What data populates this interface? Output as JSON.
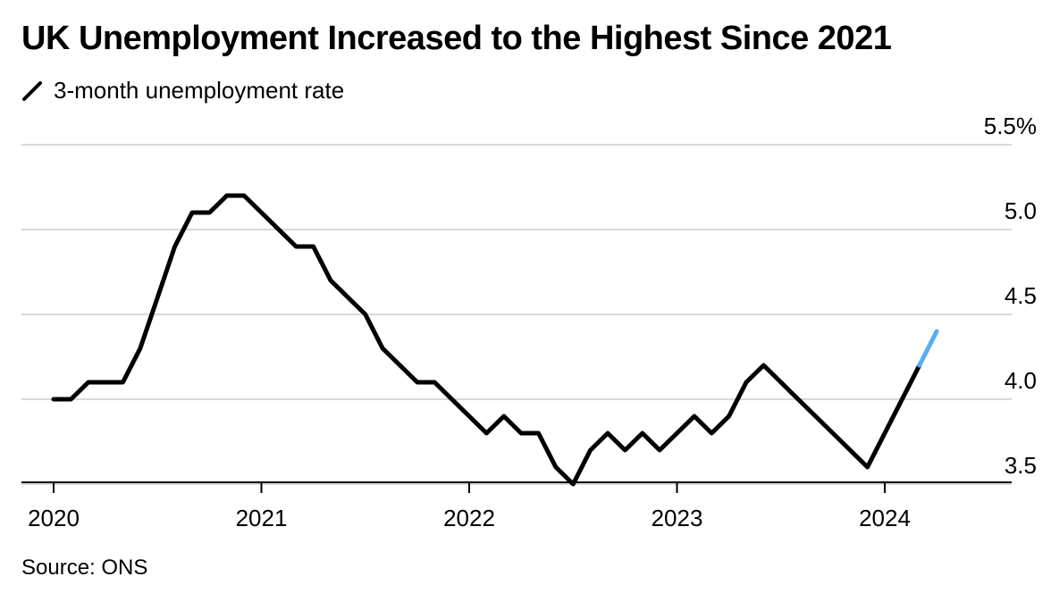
{
  "header": {
    "title": "UK Unemployment Increased to the Highest Since 2021",
    "legend_label": "3-month unemployment rate"
  },
  "footer": {
    "source": "Source: ONS"
  },
  "chart_data": {
    "type": "line",
    "title": "UK Unemployment Increased to the Highest Since 2021",
    "xlabel": "",
    "ylabel": "",
    "ylim": [
      3.4,
      5.5
    ],
    "y_ticks": [
      3.5,
      4.0,
      4.5,
      5.0,
      5.5
    ],
    "y_tick_labels": [
      "3.5",
      "4.0",
      "4.5",
      "5.0",
      "5.5%"
    ],
    "x_tick_labels": [
      "2020",
      "2021",
      "2022",
      "2023",
      "2024"
    ],
    "grid": true,
    "y_axis_position": "right",
    "colors": {
      "line": "#000000",
      "highlight": "#5aaef2",
      "grid": "#d9d9d9"
    },
    "series": [
      {
        "name": "3-month unemployment rate",
        "x": [
          "2020-01",
          "2020-02",
          "2020-03",
          "2020-04",
          "2020-05",
          "2020-06",
          "2020-07",
          "2020-08",
          "2020-09",
          "2020-10",
          "2020-11",
          "2020-12",
          "2021-01",
          "2021-02",
          "2021-03",
          "2021-04",
          "2021-05",
          "2021-06",
          "2021-07",
          "2021-08",
          "2021-09",
          "2021-10",
          "2021-11",
          "2021-12",
          "2022-01",
          "2022-02",
          "2022-03",
          "2022-04",
          "2022-05",
          "2022-06",
          "2022-07",
          "2022-08",
          "2022-09",
          "2022-10",
          "2022-11",
          "2022-12",
          "2023-01",
          "2023-02",
          "2023-03",
          "2023-04",
          "2023-05",
          "2023-06",
          "2023-07",
          "2023-08",
          "2023-09",
          "2023-10",
          "2023-11",
          "2023-12",
          "2024-01",
          "2024-02",
          "2024-03"
        ],
        "values": [
          4.0,
          4.0,
          4.1,
          4.1,
          4.1,
          4.3,
          4.6,
          4.9,
          5.1,
          5.1,
          5.2,
          5.2,
          5.1,
          5.0,
          4.9,
          4.9,
          4.7,
          4.6,
          4.5,
          4.3,
          4.2,
          4.1,
          4.1,
          4.0,
          3.9,
          3.8,
          3.9,
          3.8,
          3.8,
          3.6,
          3.5,
          3.7,
          3.8,
          3.7,
          3.8,
          3.7,
          3.8,
          3.9,
          3.8,
          3.9,
          4.1,
          4.2,
          4.1,
          4.0,
          3.9,
          3.8,
          3.7,
          3.6,
          3.8,
          4.0,
          4.2
        ],
        "highlight_point": {
          "x": "2024-04",
          "value": 4.4
        }
      }
    ]
  }
}
